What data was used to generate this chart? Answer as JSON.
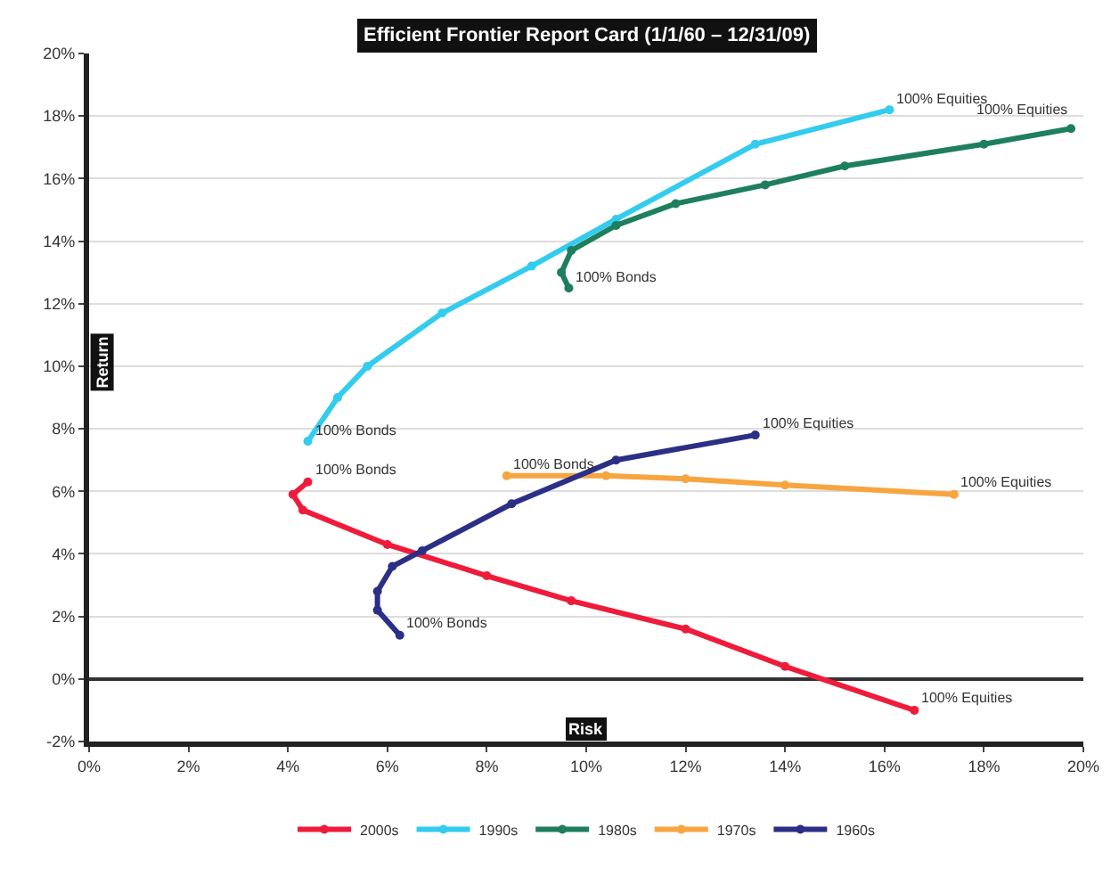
{
  "chart_data": {
    "type": "line",
    "title": "Efficient Frontier Report Card (1/1/60 – 12/31/09)",
    "xlabel": "Risk",
    "ylabel": "Return",
    "xlim": [
      0,
      20
    ],
    "ylim": [
      -2,
      20
    ],
    "xticks": [
      {
        "value": 0,
        "label": "0%"
      },
      {
        "value": 2,
        "label": "2%"
      },
      {
        "value": 4,
        "label": "4%"
      },
      {
        "value": 6,
        "label": "6%"
      },
      {
        "value": 8,
        "label": "8%"
      },
      {
        "value": 10,
        "label": "10%"
      },
      {
        "value": 12,
        "label": "12%"
      },
      {
        "value": 14,
        "label": "14%"
      },
      {
        "value": 16,
        "label": "16%"
      },
      {
        "value": 18,
        "label": "18%"
      },
      {
        "value": 20,
        "label": "20%"
      }
    ],
    "yticks": [
      {
        "value": -2,
        "label": "-2%"
      },
      {
        "value": 0,
        "label": "0%"
      },
      {
        "value": 2,
        "label": "2%"
      },
      {
        "value": 4,
        "label": "4%"
      },
      {
        "value": 6,
        "label": "6%"
      },
      {
        "value": 8,
        "label": "8%"
      },
      {
        "value": 10,
        "label": "10%"
      },
      {
        "value": 12,
        "label": "12%"
      },
      {
        "value": 14,
        "label": "14%"
      },
      {
        "value": 16,
        "label": "16%"
      },
      {
        "value": 18,
        "label": "18%"
      },
      {
        "value": 20,
        "label": "20%"
      }
    ],
    "grid": "y",
    "legend": "bottom",
    "marker": "circle",
    "line_style": "solid",
    "series": [
      {
        "name": "2000s",
        "color": "#ee1c3a",
        "x": [
          4.4,
          4.1,
          4.3,
          6.0,
          8.0,
          9.7,
          12.0,
          14.0,
          16.6
        ],
        "values": [
          6.3,
          5.9,
          5.4,
          4.3,
          3.3,
          2.5,
          1.6,
          0.4,
          -1.0
        ]
      },
      {
        "name": "1990s",
        "color": "#33ccee",
        "x": [
          4.4,
          5.0,
          5.6,
          7.1,
          8.9,
          10.6,
          13.4,
          16.1
        ],
        "values": [
          7.6,
          9.0,
          10.0,
          11.7,
          13.2,
          14.7,
          17.1,
          18.2
        ]
      },
      {
        "name": "1980s",
        "color": "#1e7f5c",
        "x": [
          9.65,
          9.5,
          9.7,
          10.6,
          11.8,
          13.6,
          15.2,
          18.0,
          19.75
        ],
        "values": [
          12.5,
          13.0,
          13.7,
          14.5,
          15.2,
          15.8,
          16.4,
          17.1,
          17.6
        ]
      },
      {
        "name": "1970s",
        "color": "#f7a540",
        "x": [
          8.4,
          10.4,
          12.0,
          14.0,
          17.4
        ],
        "values": [
          6.5,
          6.5,
          6.4,
          6.2,
          5.9
        ]
      },
      {
        "name": "1960s",
        "color": "#2b2f85",
        "x": [
          6.25,
          5.8,
          5.8,
          6.1,
          6.7,
          8.5,
          10.6,
          13.4
        ],
        "values": [
          1.4,
          2.2,
          2.8,
          3.6,
          4.1,
          5.6,
          7.0,
          7.8
        ]
      }
    ],
    "annotations": [
      {
        "text": "100% Bonds",
        "x": 4.4,
        "y": 6.3
      },
      {
        "text": "100% Equities",
        "x": 16.6,
        "y": -1.0
      },
      {
        "text": "100% Bonds",
        "x": 4.4,
        "y": 7.6
      },
      {
        "text": "100% Equities",
        "x": 16.1,
        "y": 18.2
      },
      {
        "text": "100% Bonds",
        "x": 9.65,
        "y": 12.5
      },
      {
        "text": "100% Equities",
        "x": 19.75,
        "y": 17.6
      },
      {
        "text": "100% Bonds",
        "x": 8.4,
        "y": 6.5
      },
      {
        "text": "100% Equities",
        "x": 17.4,
        "y": 5.9
      },
      {
        "text": "100% Bonds",
        "x": 6.25,
        "y": 1.4
      },
      {
        "text": "100% Equities",
        "x": 13.4,
        "y": 7.8
      }
    ]
  }
}
